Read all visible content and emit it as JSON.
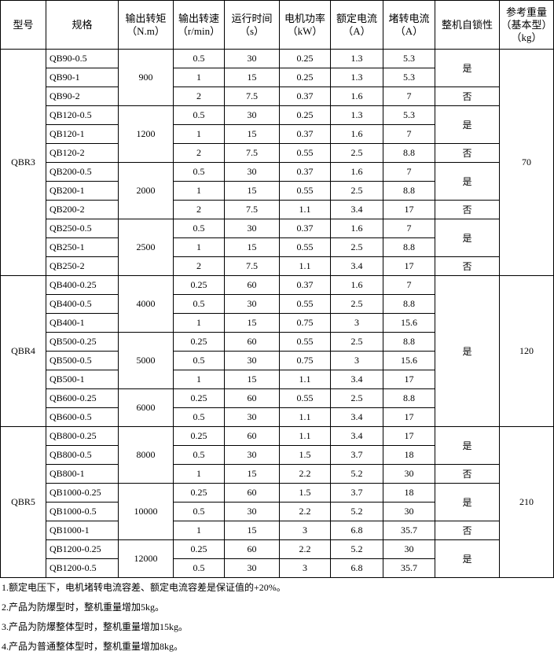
{
  "header": [
    [
      "型号"
    ],
    [
      "规格"
    ],
    [
      "输出转矩",
      "（N.m）"
    ],
    [
      "输出转速",
      "（r/min）"
    ],
    [
      "运行时间",
      "（s）"
    ],
    [
      "电机功率",
      "（kW）"
    ],
    [
      "额定电流",
      "（A）"
    ],
    [
      "堵转电流",
      "（A）"
    ],
    [
      "整机自锁性"
    ],
    [
      "参考重量",
      "（基本型）",
      "（kg）"
    ]
  ],
  "models": [
    {
      "model": "QBR3",
      "weight": "70",
      "torques": [
        {
          "torque": "900",
          "rows": [
            [
              "QB90-0.5",
              "0.5",
              "30",
              "0.25",
              "1.3",
              "5.3",
              "是"
            ],
            [
              "QB90-1",
              "1",
              "15",
              "0.25",
              "1.3",
              "5.3",
              null
            ],
            [
              "QB90-2",
              "2",
              "7.5",
              "0.37",
              "1.6",
              "7",
              "否"
            ]
          ]
        },
        {
          "torque": "1200",
          "rows": [
            [
              "QB120-0.5",
              "0.5",
              "30",
              "0.25",
              "1.3",
              "5.3",
              "是"
            ],
            [
              "QB120-1",
              "1",
              "15",
              "0.37",
              "1.6",
              "7",
              null
            ],
            [
              "QB120-2",
              "2",
              "7.5",
              "0.55",
              "2.5",
              "8.8",
              "否"
            ]
          ]
        },
        {
          "torque": "2000",
          "rows": [
            [
              "QB200-0.5",
              "0.5",
              "30",
              "0.37",
              "1.6",
              "7",
              "是"
            ],
            [
              "QB200-1",
              "1",
              "15",
              "0.55",
              "2.5",
              "8.8",
              null
            ],
            [
              "QB200-2",
              "2",
              "7.5",
              "1.1",
              "3.4",
              "17",
              "否"
            ]
          ]
        },
        {
          "torque": "2500",
          "rows": [
            [
              "QB250-0.5",
              "0.5",
              "30",
              "0.37",
              "1.6",
              "7",
              "是"
            ],
            [
              "QB250-1",
              "1",
              "15",
              "0.55",
              "2.5",
              "8.8",
              null
            ],
            [
              "QB250-2",
              "2",
              "7.5",
              "1.1",
              "3.4",
              "17",
              "否"
            ]
          ]
        }
      ]
    },
    {
      "model": "QBR4",
      "weight": "120",
      "torques": [
        {
          "torque": "4000",
          "rows": [
            [
              "QB400-0.25",
              "0.25",
              "60",
              "0.37",
              "1.6",
              "7",
              "是"
            ],
            [
              "QB400-0.5",
              "0.5",
              "30",
              "0.55",
              "2.5",
              "8.8",
              null
            ],
            [
              "QB400-1",
              "1",
              "15",
              "0.75",
              "3",
              "15.6",
              null
            ]
          ]
        },
        {
          "torque": "5000",
          "rows": [
            [
              "QB500-0.25",
              "0.25",
              "60",
              "0.55",
              "2.5",
              "8.8",
              null
            ],
            [
              "QB500-0.5",
              "0.5",
              "30",
              "0.75",
              "3",
              "15.6",
              null
            ],
            [
              "QB500-1",
              "1",
              "15",
              "1.1",
              "3.4",
              "17",
              null
            ]
          ]
        },
        {
          "torque": "6000",
          "rows": [
            [
              "QB600-0.25",
              "0.25",
              "60",
              "0.55",
              "2.5",
              "8.8",
              null
            ],
            [
              "QB600-0.5",
              "0.5",
              "30",
              "1.1",
              "3.4",
              "17",
              null
            ]
          ]
        }
      ]
    },
    {
      "model": "QBR5",
      "weight": "210",
      "torques": [
        {
          "torque": "8000",
          "rows": [
            [
              "QB800-0.25",
              "0.25",
              "60",
              "1.1",
              "3.4",
              "17",
              "是"
            ],
            [
              "QB800-0.5",
              "0.5",
              "30",
              "1.5",
              "3.7",
              "18",
              null
            ],
            [
              "QB800-1",
              "1",
              "15",
              "2.2",
              "5.2",
              "30",
              "否"
            ]
          ]
        },
        {
          "torque": "10000",
          "rows": [
            [
              "QB1000-0.25",
              "0.25",
              "60",
              "1.5",
              "3.7",
              "18",
              "是"
            ],
            [
              "QB1000-0.5",
              "0.5",
              "30",
              "2.2",
              "5.2",
              "30",
              null
            ],
            [
              "QB1000-1",
              "1",
              "15",
              "3",
              "6.8",
              "35.7",
              "否"
            ]
          ]
        },
        {
          "torque": "12000",
          "rows": [
            [
              "QB1200-0.25",
              "0.25",
              "60",
              "2.2",
              "5.2",
              "30",
              "是"
            ],
            [
              "QB1200-0.5",
              "0.5",
              "30",
              "3",
              "6.8",
              "35.7",
              null
            ]
          ]
        }
      ]
    }
  ],
  "notes": [
    "1.额定电压下，电机堵转电流容差、额定电流容差是保证值的+20%。",
    "2.产品为防爆型时，整机重量增加5kg。",
    "3.产品为防爆整体型时，整机重量增加15kg。",
    "4.产品为普通整体型时，整机重量增加8kg。"
  ]
}
